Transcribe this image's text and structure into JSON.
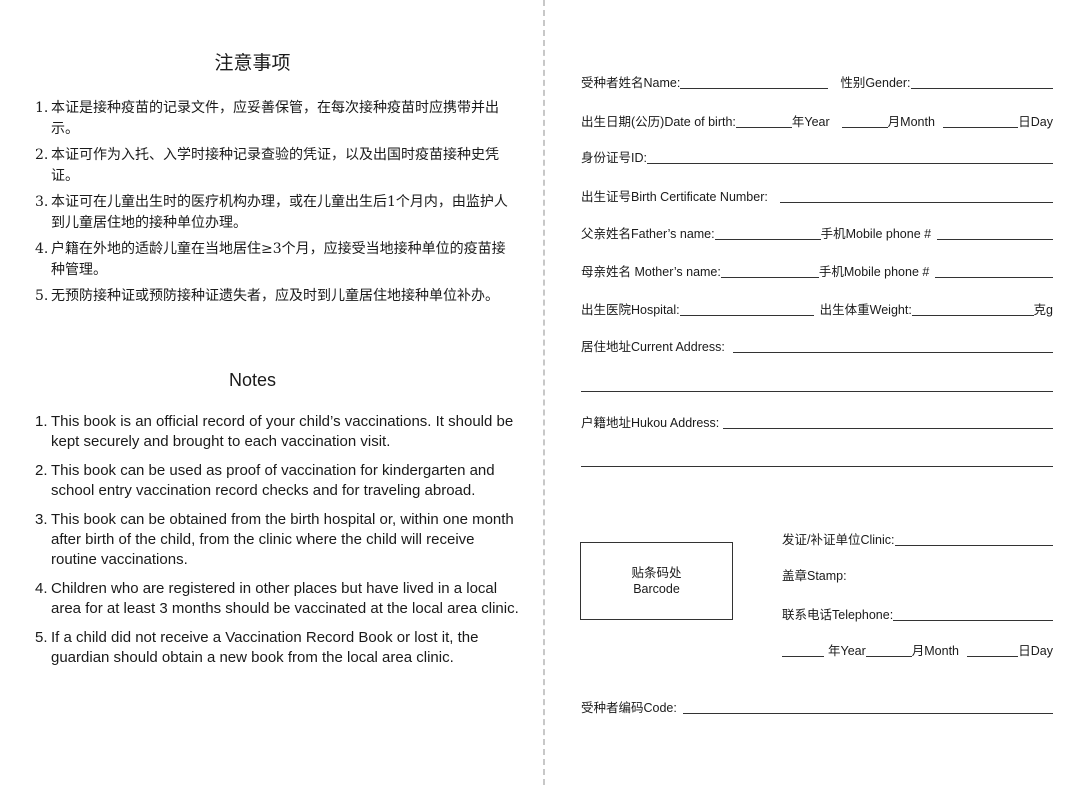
{
  "notes_zh": {
    "title": "注意事项",
    "items": [
      {
        "num": "1.",
        "text": "本证是接种疫苗的记录文件，应妥善保管，在每次接种疫苗时应携带并出示。"
      },
      {
        "num": "2.",
        "text": "本证可作为入托、入学时接种记录查验的凭证，以及出国时疫苗接种史凭证。"
      },
      {
        "num": "3.",
        "text": "本证可在儿童出生时的医疗机构办理，或在儿童出生后1个月内，由监护人到儿童居住地的接种单位办理。"
      },
      {
        "num": "4.",
        "text": "户籍在外地的适龄儿童在当地居住≥3个月，应接受当地接种单位的疫苗接种管理。"
      },
      {
        "num": "5.",
        "text": "无预防接种证或预防接种证遗失者，应及时到儿童居住地接种单位补办。"
      }
    ]
  },
  "notes_en": {
    "title": "Notes",
    "items": [
      {
        "num": "1.",
        "text": "This book is an official record of your child’s vaccinations. It should be kept securely and brought to each vaccination visit."
      },
      {
        "num": "2.",
        "text": "This book can be used as proof of vaccination for kindergarten and school entry vaccination record checks and for traveling abroad."
      },
      {
        "num": "3.",
        "text": "This book can be obtained from the birth hospital or, within one month after birth of the child, from the clinic where the child will receive routine vaccinations."
      },
      {
        "num": "4.",
        "text": "Children who are registered in other places but have lived in a local area for at least 3 months should be vaccinated at the local area clinic."
      },
      {
        "num": "5.",
        "text": "If a child did not receive a Vaccination Record Book or lost it, the guardian should obtain a new book from the local area clinic."
      }
    ]
  },
  "form": {
    "name_label": "受种者姓名Name:",
    "gender_label": "性别Gender:",
    "dob_label": "出生日期(公历)Date of birth:",
    "year_label": "年Year",
    "month_label": "月Month",
    "day_label": "日Day",
    "id_label": "身份证号ID:",
    "birth_cert_label": "出生证号Birth Certificate Number:",
    "father_label": "父亲姓名Father’s name:",
    "mother_label": "母亲姓名 Mother’s name:",
    "mobile_label": "手机Mobile phone #",
    "hospital_label": "出生医院Hospital:",
    "weight_label": "出生体重Weight:",
    "weight_unit": "克g",
    "address_label": "居住地址Current Address:",
    "hukou_label": "户籍地址Hukou Address:",
    "barcode_zh": "贴条码处",
    "barcode_en": "Barcode",
    "clinic_label": "发证/补证单位Clinic:",
    "stamp_label": "盖章Stamp:",
    "telephone_label": "联系电话Telephone:",
    "issue_year_label": "年Year",
    "issue_month_label": "月Month",
    "issue_day_label": "日Day",
    "code_label": "受种者编码Code:"
  }
}
